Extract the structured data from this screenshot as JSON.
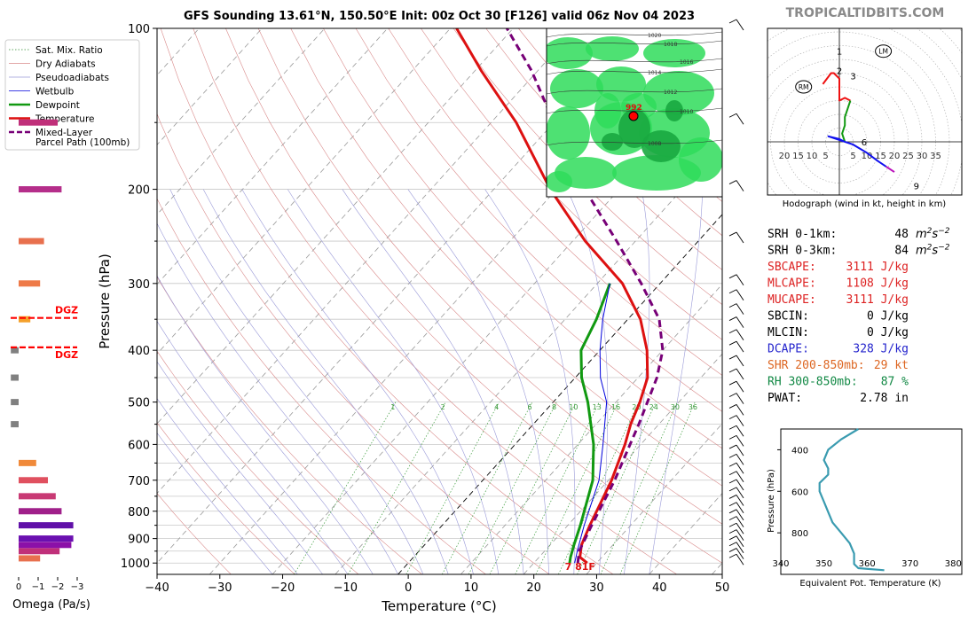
{
  "header": {
    "title": "GFS Sounding 13.61°N, 150.50°E Init: 00z Oct 30 [F126] valid 06z Nov 04 2023",
    "brand": "TROPICALTIDBITS.COM"
  },
  "chart_data": [
    {
      "type": "line",
      "subtype": "skew-t log-p",
      "xlabel": "Temperature (°C)",
      "ylabel": "Pressure (hPa)",
      "xlim": [
        -40,
        50
      ],
      "ylim": [
        1050,
        100
      ],
      "yscale": "log",
      "x_ticks": [
        "−40",
        "−30",
        "−20",
        "−10",
        "0",
        "10",
        "20",
        "30",
        "40",
        "50"
      ],
      "y_ticks": [
        "100",
        "200",
        "300",
        "400",
        "500",
        "600",
        "700",
        "800",
        "900",
        "1000"
      ],
      "legend_position": "top-left",
      "legend": [
        {
          "label": "Sat. Mix. Ratio",
          "color": "#2e8b2e",
          "style": "dotted"
        },
        {
          "label": "Dry Adiabats",
          "color": "#d98a8a",
          "style": "solid"
        },
        {
          "label": "Pseudoadiabats",
          "color": "#9a9ad8",
          "style": "solid"
        },
        {
          "label": "Wetbulb",
          "color": "#0000dd",
          "style": "solid"
        },
        {
          "label": "Dewpoint",
          "color": "#119911",
          "style": "solid"
        },
        {
          "label": "Temperature",
          "color": "#dd1111",
          "style": "solid"
        },
        {
          "label": "Mixed-Layer\nParcel Path (100mb)",
          "color": "#770077",
          "style": "dashed"
        }
      ],
      "series": [
        {
          "name": "Temperature",
          "points": [
            [
              1000,
              28.5
            ],
            [
              975,
              26.5
            ],
            [
              925,
              25
            ],
            [
              850,
              23.5
            ],
            [
              700,
              20.5
            ],
            [
              600,
              17.5
            ],
            [
              550,
              15.5
            ],
            [
              500,
              13.8
            ],
            [
              450,
              11.5
            ],
            [
              400,
              7.5
            ],
            [
              350,
              2.0
            ],
            [
              300,
              -6.0
            ],
            [
              250,
              -18.0
            ],
            [
              200,
              -31.0
            ],
            [
              150,
              -46.0
            ],
            [
              120,
              -59.0
            ],
            [
              100,
              -69.0
            ]
          ]
        },
        {
          "name": "Dewpoint",
          "points": [
            [
              1000,
              25.7
            ],
            [
              975,
              25.0
            ],
            [
              925,
              23.8
            ],
            [
              850,
              22.0
            ],
            [
              700,
              17.5
            ],
            [
              600,
              12.5
            ],
            [
              500,
              5.5
            ],
            [
              450,
              1.0
            ],
            [
              400,
              -3.0
            ],
            [
              350,
              -5.0
            ],
            [
              300,
              -8.0
            ]
          ]
        },
        {
          "name": "Wetbulb",
          "points": [
            [
              1000,
              26.5
            ],
            [
              950,
              25.2
            ],
            [
              850,
              22.6
            ],
            [
              700,
              18.5
            ],
            [
              600,
              14.0
            ],
            [
              500,
              8.5
            ],
            [
              450,
              4.0
            ],
            [
              400,
              0.0
            ],
            [
              350,
              -4.0
            ],
            [
              300,
              -8.0
            ]
          ]
        },
        {
          "name": "Mixed-Layer\nParcel Path (100mb)",
          "points": [
            [
              1000,
              27.0
            ],
            [
              950,
              25.5
            ],
            [
              850,
              23.8
            ],
            [
              700,
              21.0
            ],
            [
              600,
              18.3
            ],
            [
              550,
              16.8
            ],
            [
              500,
              15.0
            ],
            [
              450,
              13.0
            ],
            [
              400,
              10.0
            ],
            [
              350,
              5.0
            ],
            [
              300,
              -3.0
            ],
            [
              250,
              -13.0
            ],
            [
              200,
              -25.5
            ],
            [
              150,
              -40.0
            ],
            [
              120,
              -51.0
            ],
            [
              100,
              -61.0
            ]
          ]
        }
      ],
      "mixing_ratio_labels": [
        "1",
        "2",
        "4",
        "6",
        "8",
        "10",
        "13",
        "16",
        "20",
        "24",
        "30",
        "36"
      ],
      "surface_label": "7 81F",
      "dgz_label": "DGZ",
      "omega": {
        "xlabel": "Omega (Pa/s)",
        "ticks": [
          "0",
          "−1",
          "−2",
          "−3"
        ],
        "levels": [
          {
            "p": 980,
            "v": -1.1,
            "color": "#e8704e"
          },
          {
            "p": 950,
            "v": -2.1,
            "color": "#c0307a"
          },
          {
            "p": 925,
            "v": -2.7,
            "color": "#8b10a8"
          },
          {
            "p": 900,
            "v": -2.8,
            "color": "#6a10b0"
          },
          {
            "p": 850,
            "v": -2.8,
            "color": "#6010a8"
          },
          {
            "p": 800,
            "v": -2.2,
            "color": "#a0208a"
          },
          {
            "p": 750,
            "v": -1.9,
            "color": "#c83a74"
          },
          {
            "p": 700,
            "v": -1.5,
            "color": "#e0505f"
          },
          {
            "p": 650,
            "v": -0.9,
            "color": "#f08a3a"
          },
          {
            "p": 550,
            "v": 0.4,
            "color": "#808080"
          },
          {
            "p": 500,
            "v": 0.4,
            "color": "#808080"
          },
          {
            "p": 450,
            "v": 0.4,
            "color": "#808080"
          },
          {
            "p": 400,
            "v": 0.4,
            "color": "#808080"
          },
          {
            "p": 350,
            "v": -0.6,
            "color": "#f4a02a"
          },
          {
            "p": 300,
            "v": -1.1,
            "color": "#ee7a48"
          },
          {
            "p": 250,
            "v": -1.3,
            "color": "#e8704e"
          },
          {
            "p": 200,
            "v": -2.2,
            "color": "#b52e8a"
          },
          {
            "p": 150,
            "v": -2.0,
            "color": "#c0307a"
          }
        ],
        "dgz": [
          348,
          395
        ]
      }
    },
    {
      "type": "line",
      "subtype": "hodograph",
      "title": "Hodograph (wind in kt, height in km)",
      "ring_labels": [
        "20",
        "15",
        "10",
        "5",
        "5",
        "10",
        "15",
        "20",
        "25",
        "30",
        "35"
      ],
      "markers": [
        "LM",
        "RM"
      ],
      "height_labels": [
        "1",
        "2",
        "3",
        "6",
        "9"
      ],
      "series": [
        {
          "name": "0-3 km",
          "color": "#ee1111",
          "points": [
            [
              -6,
              21
            ],
            [
              -3,
              25
            ],
            [
              -2,
              25
            ],
            [
              0,
              23
            ],
            [
              0,
              15
            ],
            [
              2,
              16
            ],
            [
              4,
              15
            ]
          ]
        },
        {
          "name": "3-6 km",
          "color": "#119911",
          "points": [
            [
              4,
              15
            ],
            [
              3,
              12
            ],
            [
              2,
              9
            ],
            [
              2,
              6
            ],
            [
              1,
              3
            ],
            [
              2,
              0
            ]
          ]
        },
        {
          "name": "6-9 km",
          "color": "#1111ee",
          "points": [
            [
              2,
              0
            ],
            [
              0,
              1
            ],
            [
              -4,
              2
            ],
            [
              5,
              -1
            ],
            [
              10,
              -4
            ],
            [
              14,
              -7
            ],
            [
              17,
              -9
            ]
          ]
        },
        {
          "name": "9+ km",
          "color": "#bb11bb",
          "points": [
            [
              17,
              -9
            ],
            [
              20,
              -11
            ]
          ]
        }
      ]
    },
    {
      "type": "line",
      "subtype": "theta-e profile",
      "xlabel": "Equivalent Pot. Temperature (K)",
      "ylabel": "Pressure (hPa)",
      "xlim": [
        340,
        382
      ],
      "ylim": [
        1000,
        300
      ],
      "x_ticks": [
        "340",
        "350",
        "360",
        "370",
        "380"
      ],
      "y_ticks": [
        "400",
        "600",
        "800"
      ],
      "series": [
        {
          "name": "Theta-E",
          "color": "#3a9bb0",
          "points": [
            [
              980,
              364
            ],
            [
              970,
              358
            ],
            [
              950,
              357
            ],
            [
              900,
              357
            ],
            [
              850,
              356
            ],
            [
              800,
              354
            ],
            [
              750,
              352
            ],
            [
              700,
              351
            ],
            [
              650,
              350
            ],
            [
              600,
              349
            ],
            [
              560,
              349
            ],
            [
              520,
              351
            ],
            [
              490,
              351
            ],
            [
              450,
              350
            ],
            [
              400,
              351
            ],
            [
              350,
              354
            ],
            [
              300,
              358
            ]
          ]
        }
      ]
    }
  ],
  "indices": [
    {
      "label": "SRH 0-1km:",
      "value": "48",
      "unit": "m2s-2",
      "color": "#000000"
    },
    {
      "label": "SRH 0-3km:",
      "value": "84",
      "unit": "m2s-2",
      "color": "#000000"
    },
    {
      "label": "SBCAPE:",
      "value": "3111 J/kg",
      "color": "#dd2222"
    },
    {
      "label": "MLCAPE:",
      "value": "1108 J/kg",
      "color": "#dd2222"
    },
    {
      "label": "MUCAPE:",
      "value": "3111 J/kg",
      "color": "#dd2222"
    },
    {
      "label": "SBCIN:",
      "value": "0 J/kg",
      "color": "#000000"
    },
    {
      "label": "MLCIN:",
      "value": "0 J/kg",
      "color": "#000000"
    },
    {
      "label": "DCAPE:",
      "value": "328 J/kg",
      "color": "#2222cc"
    },
    {
      "label": "SHR 200-850mb:",
      "value": "29 kt",
      "color": "#dd6622"
    },
    {
      "label": "RH 300-850mb:",
      "value": "87 %",
      "color": "#118844"
    },
    {
      "label": "PWAT:",
      "value": "2.78 in",
      "color": "#000000"
    }
  ],
  "inset_map": {
    "low_label": "992",
    "isobars": [
      "1020",
      "1018",
      "1016",
      "1014",
      "1012",
      "1010",
      "1008"
    ]
  },
  "colors": {
    "temperature": "#dd1111",
    "dewpoint": "#119911",
    "wetbulb": "#0000dd",
    "parcel": "#770077",
    "dgz": "#ff0000"
  }
}
